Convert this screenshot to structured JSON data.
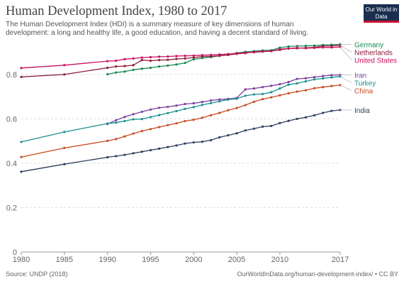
{
  "header": {
    "title": "Human Development Index, 1980 to 2017",
    "subtitle": "The Human Development Index (HDI) is a summary measure of key dimensions of human development: a long and healthy life, a good education, and having a decent standard of living.",
    "logo_text": "Our World in Data"
  },
  "footer": {
    "source": "Source: UNDP (2018)",
    "link": "OurWorldInData.org/human-development-index/ • CC BY"
  },
  "colors": {
    "grid": "#dddddd",
    "axis": "#666666"
  },
  "chart_data": {
    "type": "line",
    "title": "Human Development Index, 1980 to 2017",
    "xlabel": "",
    "ylabel": "",
    "xlim": [
      1980,
      2017
    ],
    "ylim": [
      0,
      0.95
    ],
    "x_ticks": [
      1980,
      1985,
      1990,
      1995,
      2000,
      2005,
      2010,
      2017
    ],
    "y_ticks": [
      0,
      0.2,
      0.4,
      0.6,
      0.8
    ],
    "y_tick_labels": [
      "0",
      "0.2",
      "0.4",
      "0.6",
      "0.8"
    ],
    "series": [
      {
        "name": "Germany",
        "color": "#178a52",
        "x": [
          1990,
          1991,
          1992,
          1993,
          1994,
          1995,
          1996,
          1997,
          1998,
          1999,
          2000,
          2001,
          2002,
          2003,
          2004,
          2005,
          2006,
          2007,
          2008,
          2009,
          2010,
          2011,
          2012,
          2013,
          2014,
          2015,
          2016,
          2017
        ],
        "y": [
          0.801,
          0.809,
          0.813,
          0.821,
          0.826,
          0.83,
          0.836,
          0.84,
          0.845,
          0.852,
          0.868,
          0.874,
          0.878,
          0.884,
          0.889,
          0.897,
          0.902,
          0.905,
          0.908,
          0.909,
          0.921,
          0.926,
          0.928,
          0.929,
          0.93,
          0.933,
          0.934,
          0.936
        ]
      },
      {
        "name": "Netherlands",
        "color": "#8e1b3a",
        "x": [
          1980,
          1985,
          1990,
          1991,
          1992,
          1993,
          1994,
          1995,
          1996,
          1997,
          1998,
          1999,
          2000,
          2001,
          2002,
          2003,
          2004,
          2005,
          2006,
          2007,
          2008,
          2009,
          2010,
          2011,
          2012,
          2013,
          2014,
          2015,
          2016,
          2017
        ],
        "y": [
          0.789,
          0.8,
          0.83,
          0.836,
          0.838,
          0.842,
          0.865,
          0.862,
          0.865,
          0.866,
          0.87,
          0.872,
          0.876,
          0.881,
          0.882,
          0.884,
          0.888,
          0.893,
          0.896,
          0.902,
          0.904,
          0.906,
          0.911,
          0.917,
          0.918,
          0.92,
          0.922,
          0.928,
          0.929,
          0.931
        ]
      },
      {
        "name": "United States",
        "color": "#c8105e",
        "x": [
          1980,
          1985,
          1990,
          1991,
          1992,
          1993,
          1994,
          1995,
          1996,
          1997,
          1998,
          1999,
          2000,
          2001,
          2002,
          2003,
          2004,
          2005,
          2006,
          2007,
          2008,
          2009,
          2010,
          2011,
          2012,
          2013,
          2014,
          2015,
          2016,
          2017
        ],
        "y": [
          0.829,
          0.842,
          0.86,
          0.862,
          0.869,
          0.872,
          0.876,
          0.878,
          0.88,
          0.881,
          0.883,
          0.884,
          0.885,
          0.887,
          0.888,
          0.89,
          0.892,
          0.895,
          0.898,
          0.9,
          0.903,
          0.905,
          0.914,
          0.917,
          0.92,
          0.918,
          0.92,
          0.922,
          0.922,
          0.924
        ]
      },
      {
        "name": "Iran",
        "color": "#7b3fa0",
        "x": [
          1990,
          1991,
          1992,
          1993,
          1994,
          1995,
          1996,
          1997,
          1998,
          1999,
          2000,
          2001,
          2002,
          2003,
          2004,
          2005,
          2006,
          2007,
          2008,
          2009,
          2010,
          2011,
          2012,
          2013,
          2014,
          2015,
          2016,
          2017
        ],
        "y": [
          0.577,
          0.594,
          0.609,
          0.621,
          0.632,
          0.642,
          0.65,
          0.654,
          0.66,
          0.667,
          0.67,
          0.676,
          0.683,
          0.687,
          0.69,
          0.694,
          0.733,
          0.737,
          0.743,
          0.749,
          0.756,
          0.766,
          0.78,
          0.783,
          0.788,
          0.793,
          0.797,
          0.798
        ]
      },
      {
        "name": "Turkey",
        "color": "#1a8f8f",
        "x": [
          1980,
          1985,
          1990,
          1991,
          1992,
          1993,
          1994,
          1995,
          1996,
          1997,
          1998,
          1999,
          2000,
          2001,
          2002,
          2003,
          2004,
          2005,
          2006,
          2007,
          2008,
          2009,
          2010,
          2011,
          2012,
          2013,
          2014,
          2015,
          2016,
          2017
        ],
        "y": [
          0.496,
          0.541,
          0.579,
          0.583,
          0.59,
          0.598,
          0.599,
          0.608,
          0.617,
          0.626,
          0.635,
          0.645,
          0.653,
          0.663,
          0.671,
          0.679,
          0.687,
          0.691,
          0.704,
          0.71,
          0.712,
          0.72,
          0.737,
          0.754,
          0.76,
          0.769,
          0.778,
          0.782,
          0.787,
          0.791
        ]
      },
      {
        "name": "China",
        "color": "#c94a20",
        "x": [
          1980,
          1985,
          1990,
          1991,
          1992,
          1993,
          1994,
          1995,
          1996,
          1997,
          1998,
          1999,
          2000,
          2001,
          2002,
          2003,
          2004,
          2005,
          2006,
          2007,
          2008,
          2009,
          2010,
          2011,
          2012,
          2013,
          2014,
          2015,
          2016,
          2017
        ],
        "y": [
          0.428,
          0.469,
          0.501,
          0.509,
          0.521,
          0.534,
          0.545,
          0.554,
          0.563,
          0.572,
          0.58,
          0.59,
          0.596,
          0.605,
          0.616,
          0.627,
          0.639,
          0.649,
          0.662,
          0.677,
          0.689,
          0.697,
          0.706,
          0.715,
          0.723,
          0.729,
          0.738,
          0.743,
          0.748,
          0.752
        ]
      },
      {
        "name": "India",
        "color": "#2c3e5c",
        "x": [
          1980,
          1985,
          1990,
          1991,
          1992,
          1993,
          1994,
          1995,
          1996,
          1997,
          1998,
          1999,
          2000,
          2001,
          2002,
          2003,
          2004,
          2005,
          2006,
          2007,
          2008,
          2009,
          2010,
          2011,
          2012,
          2013,
          2014,
          2015,
          2016,
          2017
        ],
        "y": [
          0.362,
          0.396,
          0.427,
          0.432,
          0.438,
          0.445,
          0.452,
          0.459,
          0.466,
          0.473,
          0.48,
          0.489,
          0.494,
          0.497,
          0.504,
          0.517,
          0.526,
          0.535,
          0.548,
          0.556,
          0.565,
          0.568,
          0.581,
          0.591,
          0.6,
          0.607,
          0.616,
          0.627,
          0.636,
          0.64
        ]
      }
    ]
  }
}
